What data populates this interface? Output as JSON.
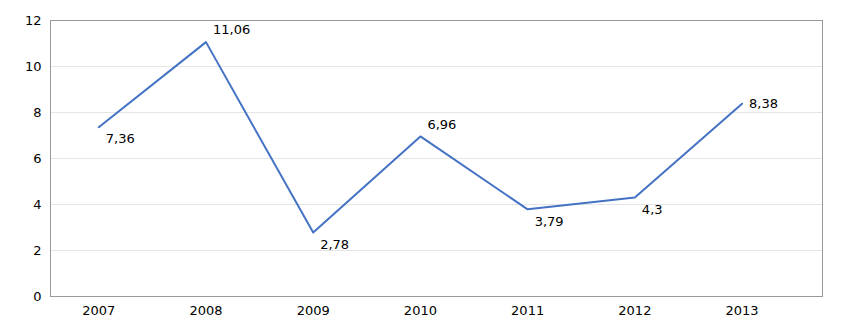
{
  "chart_data": {
    "type": "line",
    "x": [
      2007,
      2008,
      2009,
      2010,
      2011,
      2012,
      2013
    ],
    "values": [
      7.36,
      11.06,
      2.78,
      6.96,
      3.79,
      4.3,
      8.38
    ],
    "value_labels": [
      "7,36",
      "11,06",
      "2,78",
      "6,96",
      "3,79",
      "4,3",
      "8,38"
    ],
    "data_labels": true,
    "color": "#4472C4",
    "xlim": [
      2006.55,
      2013.75
    ],
    "xticks": [
      2007,
      2008,
      2009,
      2010,
      2011,
      2012,
      2013
    ],
    "ylim": [
      0,
      12
    ],
    "yticks": [
      0,
      2,
      4,
      6,
      8,
      10,
      12
    ],
    "grid": true
  }
}
